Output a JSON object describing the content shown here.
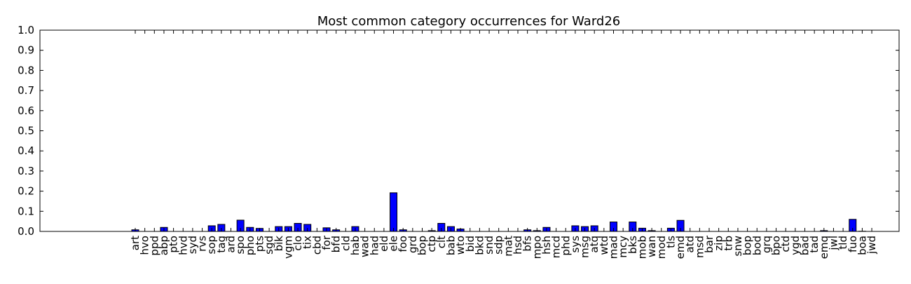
{
  "chart_data": {
    "type": "bar",
    "title": "Most common category occurrences for Ward26",
    "xlabel": "",
    "ylabel": "",
    "ylim": [
      0,
      1.0
    ],
    "yticks": [
      "0.0",
      "0.1",
      "0.2",
      "0.3",
      "0.4",
      "0.5",
      "0.6",
      "0.7",
      "0.8",
      "0.9",
      "1.0"
    ],
    "grid": false,
    "legend": "none",
    "bar_color": "#0000ff",
    "categories": [
      "art",
      "hvo",
      "ppd",
      "abp",
      "pto",
      "hvd",
      "syd",
      "rvs",
      "sop",
      "tag",
      "ard",
      "spo",
      "pho",
      "pts",
      "sgd",
      "bik",
      "vgm",
      "clo",
      "tix",
      "cbd",
      "for",
      "bfd",
      "cld",
      "hab",
      "wad",
      "had",
      "eld",
      "ele",
      "foo",
      "grd",
      "bop",
      "ctp",
      "clt",
      "bab",
      "wto",
      "bid",
      "bkd",
      "snd",
      "sdp",
      "mat",
      "hsd",
      "bfs",
      "mpo",
      "hsh",
      "mcd",
      "phd",
      "sys",
      "msg",
      "atq",
      "wtd",
      "mad",
      "mcy",
      "bks",
      "mob",
      "wan",
      "mod",
      "tls",
      "emd",
      "atd",
      "msd",
      "bar",
      "zip",
      "trb",
      "snw",
      "bop",
      "bod",
      "grq",
      "bpo",
      "ctd",
      "ygd",
      "bad",
      "tad",
      "emq",
      "jwl",
      "tld",
      "fuo",
      "boa",
      "jwd"
    ],
    "values": [
      0.008,
      0,
      0,
      0.02,
      0,
      0,
      0,
      0,
      0.028,
      0.035,
      0,
      0.056,
      0.02,
      0.015,
      0,
      0.024,
      0.024,
      0.04,
      0.035,
      0,
      0.018,
      0.008,
      0,
      0.024,
      0,
      0,
      0,
      0.192,
      0.008,
      0,
      0,
      0.004,
      0.04,
      0.024,
      0.012,
      0,
      0,
      0,
      0,
      0,
      0,
      0.008,
      0.004,
      0.02,
      0,
      0,
      0.028,
      0.024,
      0.028,
      0,
      0.047,
      0,
      0.047,
      0.016,
      0.004,
      0,
      0.016,
      0.055,
      0,
      0,
      0,
      0,
      0,
      0,
      0,
      0,
      0,
      0,
      0,
      0,
      0,
      0,
      0.004,
      0,
      0,
      0.06,
      0.001,
      0
    ]
  }
}
